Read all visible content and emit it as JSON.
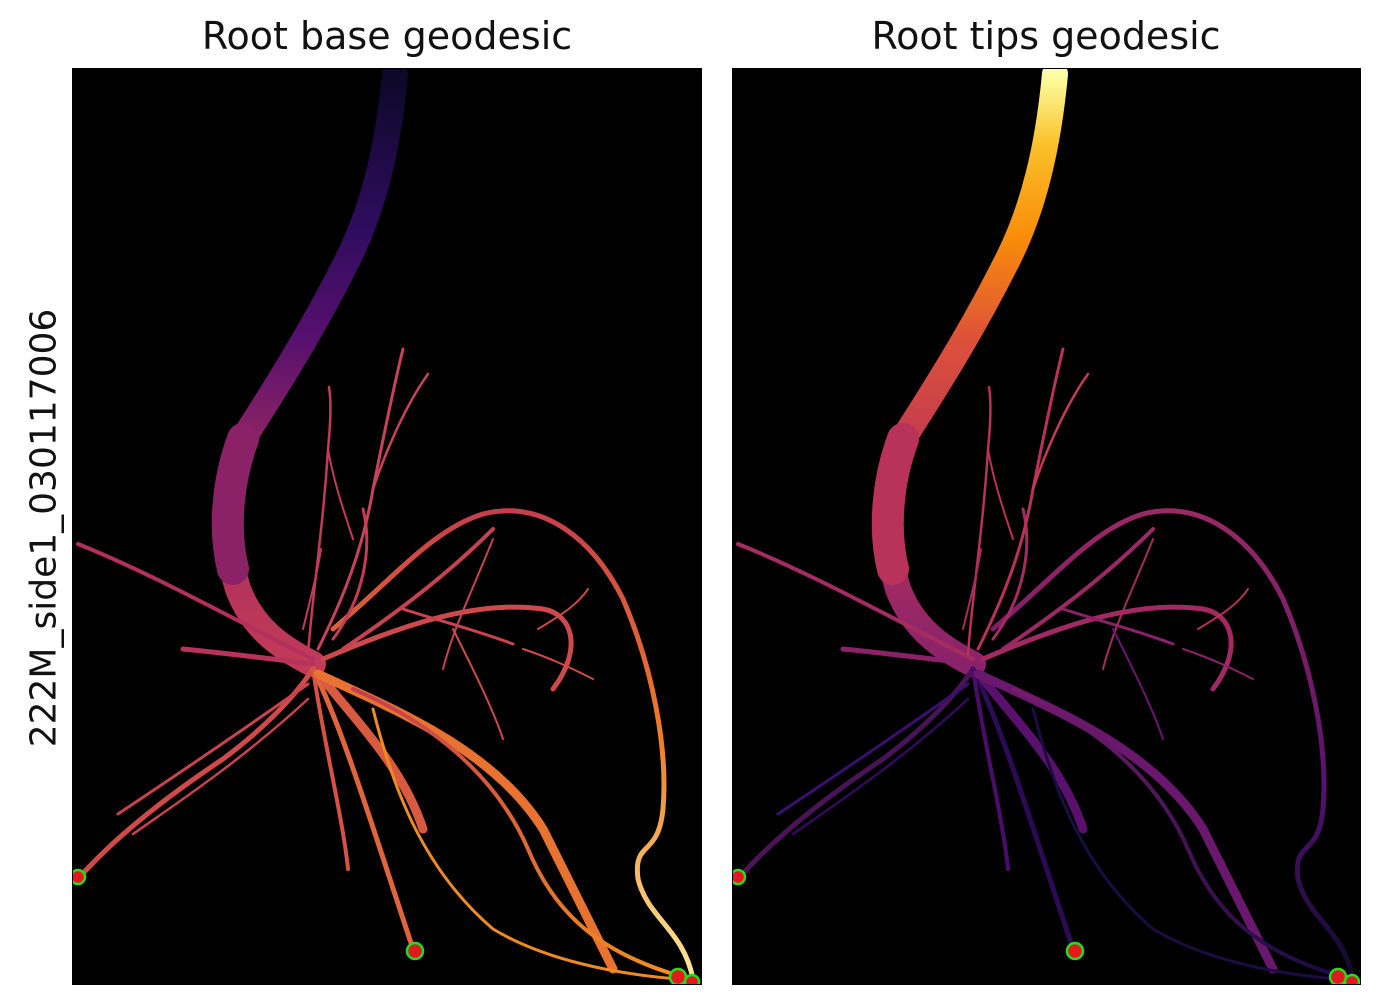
{
  "panels": [
    {
      "title": "Root base geodesic",
      "colormap": "inferno",
      "background": "#000000",
      "marker_fill": "#e31a1c",
      "marker_edge": "#22dd22"
    },
    {
      "title": "Root tips geodesic",
      "colormap": "inferno",
      "background": "#000000",
      "marker_fill": "#e31a1c",
      "marker_edge": "#22dd22"
    }
  ],
  "ylabel": "222M_side1_030117006"
}
